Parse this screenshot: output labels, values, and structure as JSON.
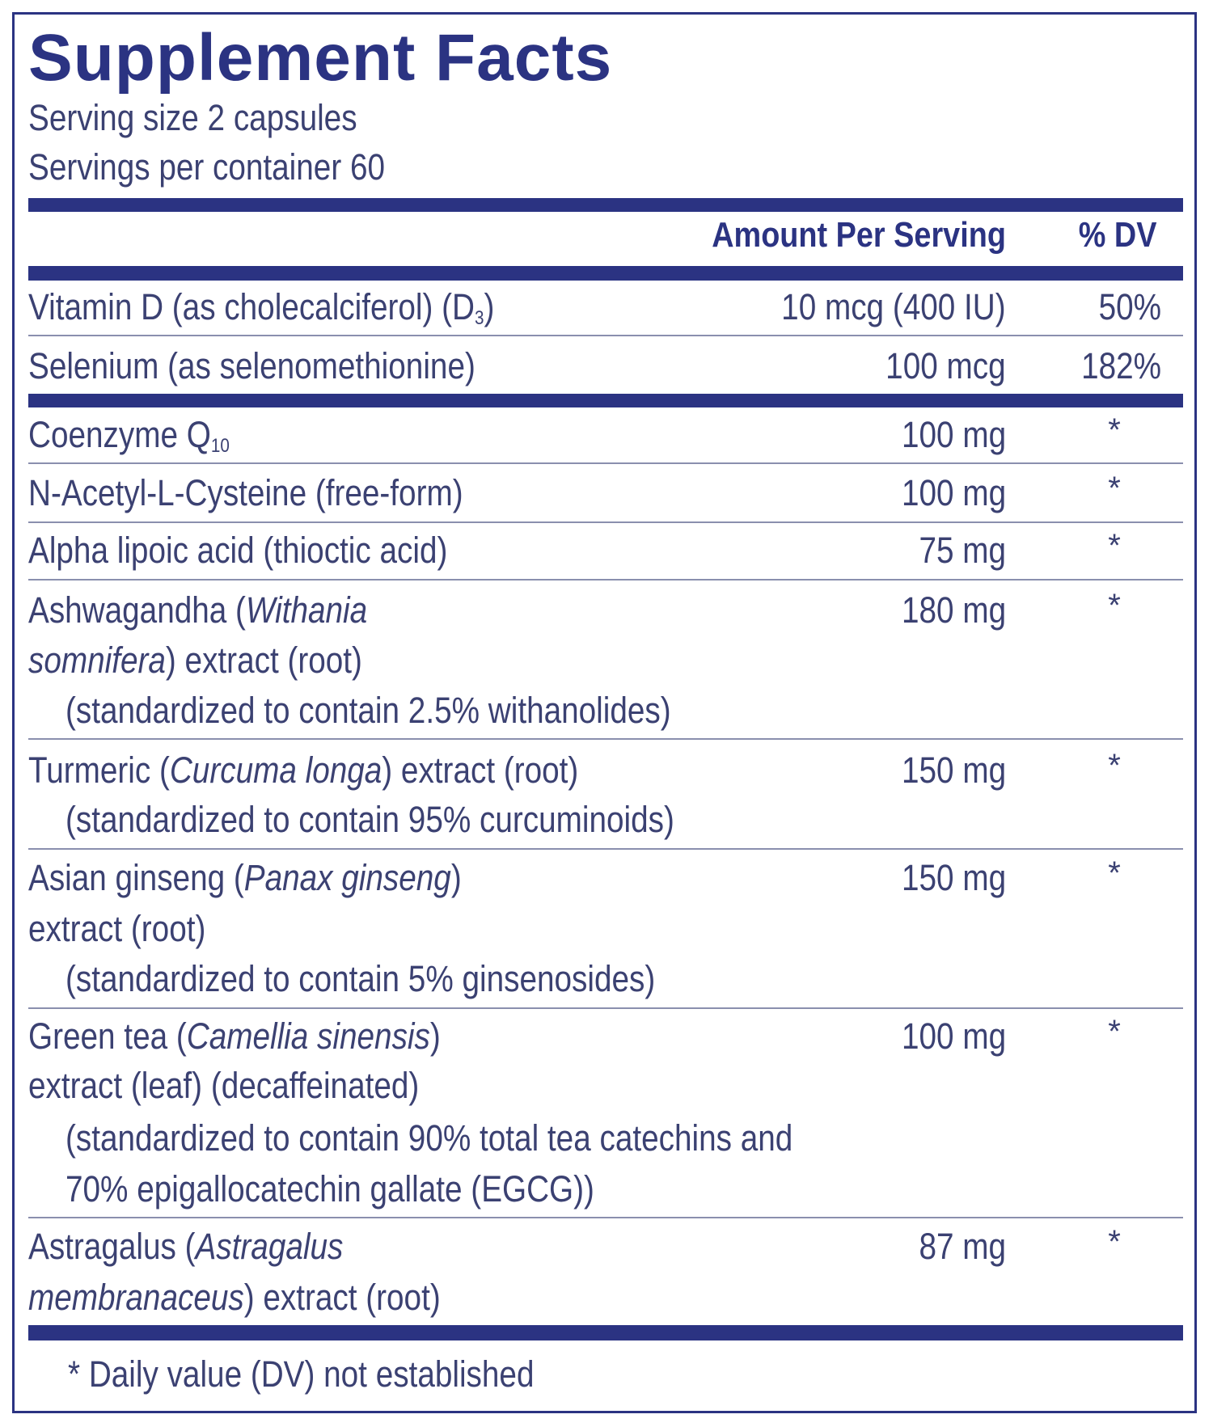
{
  "label": {
    "title": "Supplement Facts",
    "serving_size": "Serving size  2 capsules",
    "servings_per_container": "Servings per container  60",
    "header": {
      "amount": "Amount Per Serving",
      "dv": "% DV"
    },
    "colors": {
      "navy": "#2b3382",
      "text": "#3b4172"
    },
    "rows": [
      {
        "lines": [
          [
            {
              "t": "Vitamin D (as cholecalciferol) (D"
            },
            {
              "t": "3",
              "sub": true
            },
            {
              "t": ")"
            }
          ]
        ],
        "amount": "10 mcg (400 IU)",
        "dv": "50%"
      },
      {
        "lines": [
          [
            {
              "t": "Selenium (as selenomethionine)"
            }
          ]
        ],
        "amount": "100 mcg",
        "dv": "182%"
      },
      {
        "lines": [
          [
            {
              "t": "Coenzyme Q"
            },
            {
              "t": "10",
              "sub": true
            }
          ]
        ],
        "amount": "100 mg",
        "dv": "*"
      },
      {
        "lines": [
          [
            {
              "t": "N-Acetyl-L-Cysteine (free-form)"
            }
          ]
        ],
        "amount": "100 mg",
        "dv": "*"
      },
      {
        "lines": [
          [
            {
              "t": "Alpha lipoic acid (thioctic acid)"
            }
          ]
        ],
        "amount": "75 mg",
        "dv": "*"
      },
      {
        "lines": [
          [
            {
              "t": "Ashwagandha ("
            },
            {
              "t": "Withania",
              "i": true
            }
          ],
          [
            {
              "t": "somnifera",
              "i": true
            },
            {
              "t": ") extract (root)"
            }
          ],
          [
            {
              "t": "(standardized to contain 2.5% withanolides)",
              "indent": true
            }
          ]
        ],
        "amount": "180 mg",
        "dv": "*"
      },
      {
        "lines": [
          [
            {
              "t": "Turmeric ("
            },
            {
              "t": "Curcuma longa",
              "i": true
            },
            {
              "t": ") extract (root)"
            }
          ],
          [
            {
              "t": "(standardized to contain 95% curcuminoids)",
              "indent": true
            }
          ]
        ],
        "amount": "150 mg",
        "dv": "*"
      },
      {
        "lines": [
          [
            {
              "t": "Asian ginseng ("
            },
            {
              "t": "Panax ginseng",
              "i": true
            },
            {
              "t": ")"
            }
          ],
          [
            {
              "t": "extract (root)"
            }
          ],
          [
            {
              "t": "(standardized to contain 5% ginsenosides)",
              "indent": true
            }
          ]
        ],
        "amount": "150 mg",
        "dv": "*"
      },
      {
        "lines": [
          [
            {
              "t": "Green tea ("
            },
            {
              "t": "Camellia sinensis",
              "i": true
            },
            {
              "t": ")"
            }
          ],
          [
            {
              "t": "extract (leaf) (decaffeinated)"
            }
          ],
          [
            {
              "t": "(standardized to contain 90% total tea catechins and",
              "indent": true
            }
          ],
          [
            {
              "t": "70% epigallocatechin gallate (EGCG))",
              "indent": true
            }
          ]
        ],
        "amount": "100 mg",
        "dv": "*"
      },
      {
        "lines": [
          [
            {
              "t": "Astragalus ("
            },
            {
              "t": "Astragalus",
              "i": true
            }
          ],
          [
            {
              "t": "membranaceus",
              "i": true
            },
            {
              "t": ") extract (root)"
            }
          ]
        ],
        "amount": "87 mg",
        "dv": "*"
      }
    ],
    "footnote": "* Daily value (DV) not established"
  }
}
